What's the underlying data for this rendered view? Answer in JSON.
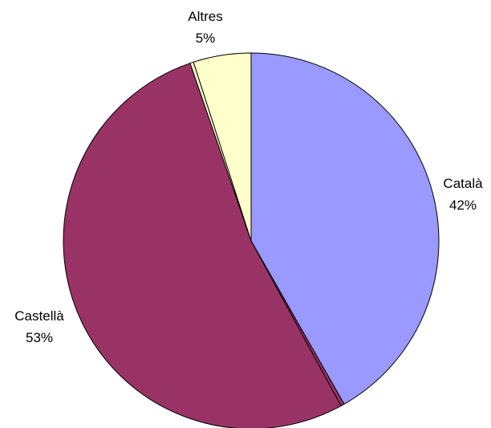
{
  "chart_data": {
    "type": "pie",
    "title": "",
    "slices": [
      {
        "label": "Català",
        "percent_label": "42%",
        "value": 42,
        "color": "#9999ff"
      },
      {
        "label": "",
        "percent_label": "",
        "value": 0.3,
        "color": "#993366"
      },
      {
        "label": "Castellà",
        "percent_label": "53%",
        "value": 53,
        "color": "#993366"
      },
      {
        "label": "",
        "percent_label": "",
        "value": 0.3,
        "color": "#ffffcc"
      },
      {
        "label": "Altres",
        "percent_label": "5%",
        "value": 5,
        "color": "#ffffcc"
      }
    ],
    "start_angle_deg": 0,
    "direction": "clockwise",
    "outline_color": "#000000",
    "legend": false
  }
}
